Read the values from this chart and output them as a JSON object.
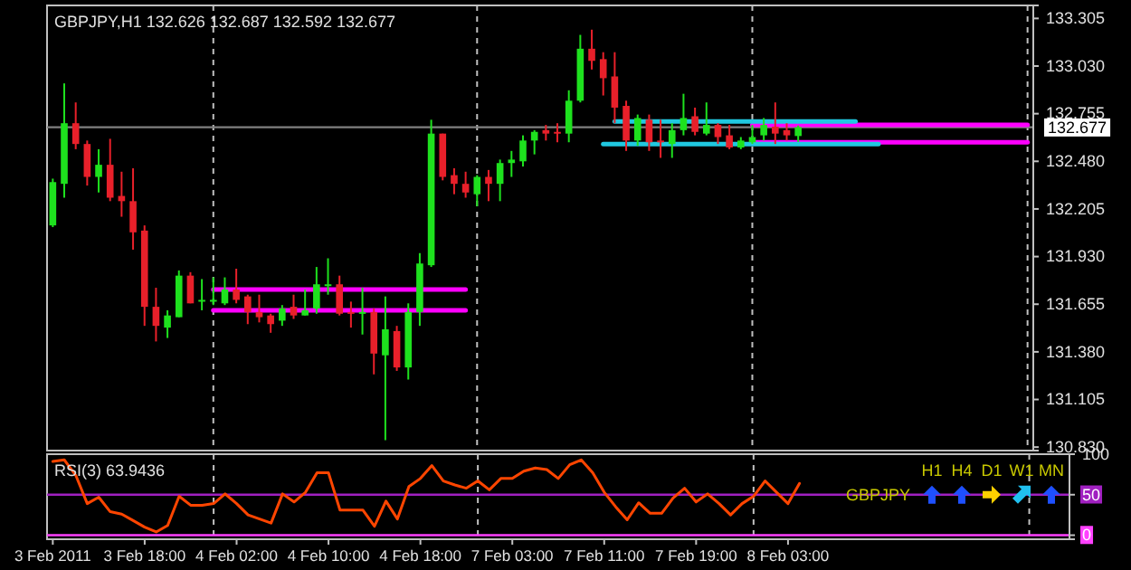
{
  "chart_data": [
    {
      "type": "candlestick",
      "title": "GBPJPY,H1 132.626 132.687 132.592 132.677",
      "categories": [
        null,
        null,
        null,
        null,
        null,
        null,
        null,
        null,
        null,
        null,
        null,
        null,
        null,
        null,
        null,
        null,
        null,
        null,
        null,
        null,
        null,
        null,
        null,
        null,
        null,
        null,
        null,
        null,
        null,
        null,
        null,
        null,
        null,
        null,
        null,
        null,
        null,
        null,
        null,
        null,
        null,
        null,
        null,
        null,
        null,
        null,
        null,
        null,
        null,
        null,
        null,
        null,
        null,
        null,
        null,
        null,
        null,
        null,
        null,
        null,
        null,
        null,
        null,
        null,
        null,
        null,
        null,
        null,
        null,
        null,
        null,
        null,
        null,
        null,
        null,
        null,
        null,
        null,
        null,
        null,
        null,
        null,
        null,
        null,
        null,
        null
      ],
      "ohlc": [
        [
          132.11,
          132.38,
          132.1,
          132.36
        ],
        [
          132.35,
          132.93,
          132.27,
          132.7
        ],
        [
          132.7,
          132.82,
          132.55,
          132.58
        ],
        [
          132.58,
          132.6,
          132.34,
          132.39
        ],
        [
          132.39,
          132.55,
          132.3,
          132.46
        ],
        [
          132.46,
          132.61,
          132.25,
          132.27
        ],
        [
          132.28,
          132.42,
          132.16,
          132.25
        ],
        [
          132.25,
          132.44,
          131.97,
          132.07
        ],
        [
          132.08,
          132.11,
          131.53,
          131.64
        ],
        [
          131.64,
          131.75,
          131.44,
          131.53
        ],
        [
          131.52,
          131.62,
          131.46,
          131.59
        ],
        [
          131.58,
          131.85,
          131.58,
          131.82
        ],
        [
          131.82,
          131.84,
          131.66,
          131.66
        ],
        [
          131.67,
          131.8,
          131.62,
          131.68
        ],
        [
          131.67,
          131.81,
          131.65,
          131.68
        ],
        [
          131.66,
          131.81,
          131.65,
          131.74
        ],
        [
          131.74,
          131.86,
          131.66,
          131.68
        ],
        [
          131.7,
          131.71,
          131.54,
          131.61
        ],
        [
          131.61,
          131.71,
          131.55,
          131.58
        ],
        [
          131.59,
          131.6,
          131.49,
          131.54
        ],
        [
          131.56,
          131.65,
          131.53,
          131.63
        ],
        [
          131.64,
          131.71,
          131.57,
          131.59
        ],
        [
          131.59,
          131.74,
          131.59,
          131.62
        ],
        [
          131.63,
          131.87,
          131.6,
          131.77
        ],
        [
          131.76,
          131.92,
          131.71,
          131.77
        ],
        [
          131.77,
          131.82,
          131.59,
          131.6
        ],
        [
          131.61,
          131.67,
          131.52,
          131.6
        ],
        [
          131.6,
          131.75,
          131.48,
          131.61
        ],
        [
          131.61,
          131.63,
          131.25,
          131.37
        ],
        [
          131.36,
          131.7,
          130.87,
          131.51
        ],
        [
          131.5,
          131.53,
          131.27,
          131.29
        ],
        [
          131.29,
          131.66,
          131.22,
          131.61
        ],
        [
          131.61,
          131.95,
          131.53,
          131.89
        ],
        [
          131.88,
          132.72,
          131.87,
          132.64
        ],
        [
          132.64,
          132.64,
          132.37,
          132.39
        ],
        [
          132.4,
          132.44,
          132.29,
          132.35
        ],
        [
          132.35,
          132.42,
          132.27,
          132.3
        ],
        [
          132.29,
          132.4,
          132.22,
          132.39
        ],
        [
          132.39,
          132.43,
          132.25,
          132.35
        ],
        [
          132.35,
          132.49,
          132.25,
          132.47
        ],
        [
          132.47,
          132.54,
          132.39,
          132.49
        ],
        [
          132.48,
          132.63,
          132.45,
          132.6
        ],
        [
          132.6,
          132.66,
          132.52,
          132.65
        ],
        [
          132.66,
          132.69,
          132.6,
          132.64
        ],
        [
          132.65,
          132.7,
          132.59,
          132.64
        ],
        [
          132.64,
          132.89,
          132.59,
          132.83
        ],
        [
          132.83,
          133.21,
          132.82,
          133.13
        ],
        [
          133.13,
          133.24,
          133.01,
          133.06
        ],
        [
          133.07,
          133.11,
          132.86,
          132.96
        ],
        [
          132.97,
          133.11,
          132.7,
          132.79
        ],
        [
          132.8,
          132.83,
          132.54,
          132.6
        ],
        [
          132.6,
          132.75,
          132.57,
          132.73
        ],
        [
          132.72,
          132.75,
          132.54,
          132.59
        ],
        [
          132.6,
          132.72,
          132.5,
          132.59
        ],
        [
          132.58,
          132.7,
          132.5,
          132.66
        ],
        [
          132.66,
          132.87,
          132.63,
          132.73
        ],
        [
          132.74,
          132.79,
          132.63,
          132.65
        ],
        [
          132.64,
          132.82,
          132.63,
          132.69
        ],
        [
          132.69,
          132.7,
          132.58,
          132.62
        ],
        [
          132.63,
          132.69,
          132.55,
          132.56
        ],
        [
          132.56,
          132.62,
          132.55,
          132.6
        ],
        [
          132.59,
          132.69,
          132.58,
          132.62
        ],
        [
          132.63,
          132.73,
          132.6,
          132.69
        ],
        [
          132.68,
          132.82,
          132.58,
          132.64
        ],
        [
          132.66,
          132.7,
          132.6,
          132.63
        ],
        [
          132.626,
          132.687,
          132.592,
          132.677
        ],
        null,
        null,
        null,
        null,
        null,
        null,
        null,
        null,
        null,
        null,
        null,
        null,
        null,
        null,
        null,
        null,
        null,
        null,
        null,
        null
      ],
      "colors": [
        "#1ee11e",
        "#1ee11e",
        "#e8202a",
        "#e8202a",
        "#1ee11e",
        "#e8202a",
        "#e8202a",
        "#e8202a",
        "#e8202a",
        "#e8202a",
        "#1ee11e",
        "#1ee11e",
        "#e8202a",
        "#1ee11e",
        "#1ee11e",
        "#1ee11e",
        "#e8202a",
        "#e8202a",
        "#e8202a",
        "#e8202a",
        "#1ee11e",
        "#e8202a",
        "#1ee11e",
        "#1ee11e",
        "#1ee11e",
        "#e8202a",
        "#e8202a",
        "#1ee11e",
        "#e8202a",
        "#1ee11e",
        "#e8202a",
        "#1ee11e",
        "#1ee11e",
        "#1ee11e",
        "#e8202a",
        "#e8202a",
        "#e8202a",
        "#1ee11e",
        "#e8202a",
        "#1ee11e",
        "#1ee11e",
        "#1ee11e",
        "#1ee11e",
        "#e8202a",
        "#e8202a",
        "#1ee11e",
        "#1ee11e",
        "#e8202a",
        "#e8202a",
        "#e8202a",
        "#e8202a",
        "#1ee11e",
        "#e8202a",
        "#e8202a",
        "#1ee11e",
        "#1ee11e",
        "#e8202a",
        "#1ee11e",
        "#e8202a",
        "#e8202a",
        "#1ee11e",
        "#1ee11e",
        "#1ee11e",
        "#e8202a",
        "#e8202a",
        "#1ee11e",
        null,
        null,
        null,
        null,
        null,
        null,
        null,
        null,
        null,
        null,
        null,
        null,
        null,
        null,
        null,
        null,
        null,
        null,
        null,
        null
      ],
      "series": [
        {
          "type": "line",
          "color": "#ff00ff",
          "values": [
            null,
            null,
            null,
            null,
            null,
            null,
            null,
            null,
            null,
            null,
            null,
            null,
            null,
            null,
            131.74,
            131.74,
            131.74,
            131.74,
            131.74,
            131.74,
            131.74,
            131.74,
            131.74,
            131.74,
            131.74,
            131.74,
            131.74,
            131.74,
            131.74,
            131.74,
            131.74,
            131.74,
            131.74,
            131.74,
            131.74,
            131.74,
            131.74,
            null,
            null,
            null,
            null,
            null,
            null,
            null,
            null,
            null,
            null,
            null,
            null,
            null,
            null,
            null,
            null,
            null,
            null,
            null,
            null,
            null,
            null,
            null,
            null,
            null,
            null,
            null,
            null,
            null,
            null,
            null,
            null,
            null,
            null,
            null,
            null,
            null,
            null,
            null,
            null,
            null,
            null,
            null,
            null,
            null,
            null,
            null,
            null,
            null
          ]
        },
        {
          "type": "line",
          "color": "#ff00ff",
          "values": [
            null,
            null,
            null,
            null,
            null,
            null,
            null,
            null,
            null,
            null,
            null,
            null,
            null,
            null,
            131.62,
            131.62,
            131.62,
            131.62,
            131.62,
            131.62,
            131.62,
            131.62,
            131.62,
            131.62,
            131.62,
            131.62,
            131.62,
            131.62,
            131.62,
            131.62,
            131.62,
            131.62,
            131.62,
            131.62,
            131.62,
            131.62,
            131.62,
            null,
            null,
            null,
            null,
            null,
            null,
            null,
            null,
            null,
            null,
            null,
            null,
            null,
            null,
            null,
            null,
            null,
            null,
            null,
            null,
            null,
            null,
            null,
            null,
            null,
            null,
            null,
            null,
            null,
            null,
            null,
            null,
            null,
            null,
            null,
            null,
            null,
            null,
            null,
            null,
            null,
            null,
            null,
            null,
            null,
            null,
            null,
            null,
            null
          ]
        },
        {
          "type": "line",
          "color": "#ff00ff",
          "values": [
            null,
            null,
            null,
            null,
            null,
            null,
            null,
            null,
            null,
            null,
            null,
            null,
            null,
            null,
            null,
            null,
            null,
            null,
            null,
            null,
            null,
            null,
            null,
            null,
            null,
            null,
            null,
            null,
            null,
            null,
            null,
            null,
            null,
            null,
            null,
            null,
            null,
            null,
            null,
            null,
            null,
            null,
            null,
            null,
            null,
            null,
            null,
            null,
            null,
            null,
            null,
            null,
            null,
            null,
            null,
            null,
            null,
            null,
            null,
            null,
            null,
            132.69,
            132.69,
            132.69,
            132.69,
            132.69,
            132.69,
            132.69,
            132.69,
            132.69,
            132.69,
            132.69,
            132.69,
            132.69,
            132.69,
            132.69,
            132.69,
            132.69,
            132.69,
            132.69,
            132.69,
            132.69,
            132.69,
            132.69,
            132.69,
            132.69
          ]
        },
        {
          "type": "line",
          "color": "#ff00ff",
          "values": [
            null,
            null,
            null,
            null,
            null,
            null,
            null,
            null,
            null,
            null,
            null,
            null,
            null,
            null,
            null,
            null,
            null,
            null,
            null,
            null,
            null,
            null,
            null,
            null,
            null,
            null,
            null,
            null,
            null,
            null,
            null,
            null,
            null,
            null,
            null,
            null,
            null,
            null,
            null,
            null,
            null,
            null,
            null,
            null,
            null,
            null,
            null,
            null,
            null,
            null,
            null,
            null,
            null,
            null,
            null,
            null,
            null,
            null,
            null,
            null,
            null,
            132.59,
            132.59,
            132.59,
            132.59,
            132.59,
            132.59,
            132.59,
            132.59,
            132.59,
            132.59,
            132.59,
            132.59,
            132.59,
            132.59,
            132.59,
            132.59,
            132.59,
            132.59,
            132.59,
            132.59,
            132.59,
            132.59,
            132.59,
            132.59,
            132.59
          ]
        },
        {
          "type": "line",
          "color": "#20c8e0",
          "values": [
            null,
            null,
            null,
            null,
            null,
            null,
            null,
            null,
            null,
            null,
            null,
            null,
            null,
            null,
            null,
            null,
            null,
            null,
            null,
            null,
            null,
            null,
            null,
            null,
            null,
            null,
            null,
            null,
            null,
            null,
            null,
            null,
            null,
            null,
            null,
            null,
            null,
            null,
            null,
            null,
            null,
            null,
            null,
            null,
            null,
            null,
            null,
            null,
            null,
            132.71,
            132.71,
            132.71,
            132.71,
            132.71,
            132.71,
            132.71,
            132.71,
            132.71,
            132.71,
            132.71,
            132.71,
            132.71,
            132.71,
            132.71,
            132.71,
            132.71,
            132.71,
            132.71,
            132.71,
            132.71,
            132.71,
            null,
            null,
            null,
            null,
            null,
            null,
            null,
            null,
            null,
            null,
            null,
            null,
            null,
            null,
            null
          ]
        },
        {
          "type": "line",
          "color": "#20c8e0",
          "values": [
            null,
            null,
            null,
            null,
            null,
            null,
            null,
            null,
            null,
            null,
            null,
            null,
            null,
            null,
            null,
            null,
            null,
            null,
            null,
            null,
            null,
            null,
            null,
            null,
            null,
            null,
            null,
            null,
            null,
            null,
            null,
            null,
            null,
            null,
            null,
            null,
            null,
            null,
            null,
            null,
            null,
            null,
            null,
            null,
            null,
            null,
            null,
            null,
            132.58,
            132.58,
            132.58,
            132.58,
            132.58,
            132.58,
            132.58,
            132.58,
            132.58,
            132.58,
            132.58,
            132.58,
            132.58,
            132.58,
            132.58,
            132.58,
            132.58,
            132.58,
            132.58,
            132.58,
            132.58,
            132.58,
            132.58,
            132.58,
            132.58,
            null,
            null,
            null,
            null,
            null,
            null,
            null,
            null,
            null,
            null,
            null,
            null,
            null
          ]
        }
      ],
      "ylim": [
        130.81,
        133.38
      ],
      "yticks": [
        {
          "value": 130.83,
          "label": "130.830"
        },
        {
          "value": 131.105,
          "label": "131.105"
        },
        {
          "value": 131.38,
          "label": "131.380"
        },
        {
          "value": 131.655,
          "label": "131.655"
        },
        {
          "value": 131.93,
          "label": "131.930"
        },
        {
          "value": 132.205,
          "label": "132.205"
        },
        {
          "value": 132.48,
          "label": "132.480"
        },
        {
          "value": 132.755,
          "label": "132.755"
        },
        {
          "value": 133.03,
          "label": "133.030"
        },
        {
          "value": 133.305,
          "label": "133.305"
        }
      ],
      "tick_labels": "y",
      "grid": "x",
      "ref_lines": [
        {
          "axis": "y",
          "value": 132.677,
          "label": "132.677",
          "color": "#808080"
        }
      ]
    },
    {
      "type": "line",
      "title": "RSI(3) 63.9436",
      "categories": [
        "3 Feb 2011",
        null,
        null,
        null,
        null,
        null,
        null,
        null,
        "3 Feb 18:00",
        null,
        null,
        null,
        null,
        null,
        null,
        null,
        "4 Feb 02:00",
        null,
        null,
        null,
        null,
        null,
        null,
        null,
        "4 Feb 10:00",
        null,
        null,
        null,
        null,
        null,
        null,
        null,
        "4 Feb 18:00",
        null,
        null,
        null,
        null,
        null,
        null,
        null,
        "7 Feb 03:00",
        null,
        null,
        null,
        null,
        null,
        null,
        null,
        "7 Feb 11:00",
        null,
        null,
        null,
        null,
        null,
        null,
        null,
        "7 Feb 19:00",
        null,
        null,
        null,
        null,
        null,
        null,
        null,
        "8 Feb 03:00",
        null,
        null,
        null,
        null,
        null,
        null,
        null,
        null,
        null,
        null,
        null,
        null,
        null,
        null,
        null,
        null,
        null,
        null,
        null,
        null,
        null,
        null,
        null,
        null
      ],
      "series": [
        {
          "color": "#ff4500",
          "values": [
            91,
            93,
            74,
            39,
            47,
            29,
            26,
            18,
            10,
            4,
            12,
            48,
            37,
            37,
            39,
            51,
            39,
            25,
            20,
            15,
            51,
            41,
            53,
            77,
            77,
            31,
            31,
            31,
            11,
            42,
            20,
            60,
            70,
            86,
            67,
            62,
            58,
            67,
            56,
            70,
            70,
            79,
            83,
            81,
            70,
            87,
            93,
            77,
            53,
            35,
            19,
            40,
            27,
            27,
            46,
            58,
            41,
            51,
            39,
            25,
            39,
            48,
            67,
            53,
            39,
            63.9436,
            null,
            null,
            null,
            null,
            null,
            null,
            null,
            null,
            null,
            null,
            null,
            null,
            null,
            null,
            null,
            null,
            null,
            null,
            null,
            null,
            null,
            null,
            null
          ]
        }
      ],
      "ylim": [
        -5,
        100
      ],
      "yticks": [
        0,
        50,
        100
      ],
      "grid": "x",
      "ref_lines": [
        {
          "axis": "y",
          "value": 50,
          "color": "#a020c0"
        },
        {
          "axis": "y",
          "value": 0,
          "color": "#ff40ff"
        }
      ],
      "annotations": [
        "GBPJPY",
        "H1",
        "H4",
        "D1",
        "W1",
        "MN"
      ]
    }
  ]
}
